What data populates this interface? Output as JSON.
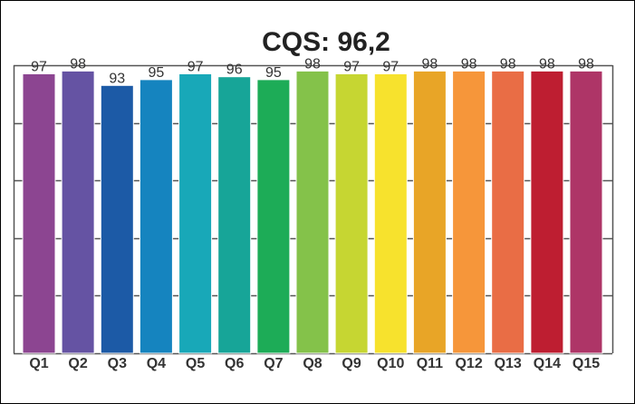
{
  "chart_data": {
    "type": "bar",
    "title": "CQS: 96,2",
    "xlabel": "",
    "ylabel": "",
    "ylim": [
      0,
      100
    ],
    "grid": true,
    "categories": [
      "Q1",
      "Q2",
      "Q3",
      "Q4",
      "Q5",
      "Q6",
      "Q7",
      "Q8",
      "Q9",
      "Q10",
      "Q11",
      "Q12",
      "Q13",
      "Q14",
      "Q15"
    ],
    "values": [
      97,
      98,
      93,
      95,
      97,
      96,
      95,
      98,
      97,
      97,
      98,
      98,
      98,
      98,
      98
    ],
    "colors": [
      "#8c4591",
      "#6553a3",
      "#1c5aa6",
      "#1584bf",
      "#18a8b8",
      "#17a598",
      "#1dac57",
      "#84c24a",
      "#c6d632",
      "#f7e22d",
      "#e8a527",
      "#f6963a",
      "#e96d45",
      "#be1e31",
      "#ae3567"
    ]
  }
}
